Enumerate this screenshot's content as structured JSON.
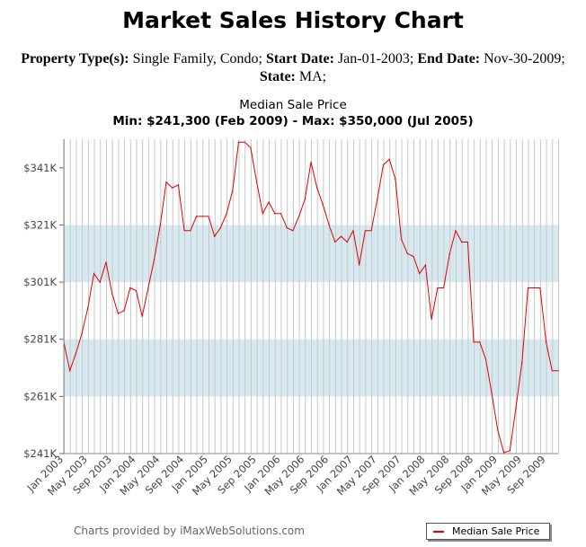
{
  "header": {
    "title": "Market Sales History Chart",
    "property_type_label": "Property Type(s):",
    "property_type": "Single Family, Condo;",
    "start_date_label": "Start Date:",
    "start_date": "Jan-01-2003;",
    "end_date_label": "End Date:",
    "end_date": "Nov-30-2009;",
    "state_label": "State:",
    "state": "MA;"
  },
  "footer": {
    "credit": "Charts provided by iMaxWebSolutions.com"
  },
  "colors": {
    "line": "#e00000",
    "band": "#d7e9f0",
    "grid": "#c8c8c8"
  },
  "chart_data": {
    "type": "line",
    "title": "Median Sale Price",
    "subtitle": "Min: $241,300 (Feb 2009) - Max: $350,000 (Jul 2005)",
    "xlabel": "",
    "ylabel": "",
    "ylim": [
      241000,
      351000
    ],
    "yticks": [
      241000,
      261000,
      281000,
      301000,
      321000,
      341000
    ],
    "ytick_labels": [
      "$241K",
      "$261K",
      "$281K",
      "$301K",
      "$321K",
      "$341K"
    ],
    "xtick_labels": [
      "Jan 2003",
      "May 2003",
      "Sep 2003",
      "Jan 2004",
      "May 2004",
      "Sep 2004",
      "Jan 2005",
      "May 2005",
      "Sep 2005",
      "Jan 2006",
      "May 2006",
      "Sep 2006",
      "Jan 2007",
      "May 2007",
      "Sep 2007",
      "Jan 2008",
      "May 2008",
      "Sep 2008",
      "Jan 2009",
      "May 2009",
      "Sep 2009"
    ],
    "grid": true,
    "shaded_bands": [
      [
        261000,
        281000
      ],
      [
        301000,
        321000
      ]
    ],
    "legend": "bottom-right",
    "series": [
      {
        "name": "Median Sale Price",
        "x": [
          "Jan 2003",
          "Feb 2003",
          "Mar 2003",
          "Apr 2003",
          "May 2003",
          "Jun 2003",
          "Jul 2003",
          "Aug 2003",
          "Sep 2003",
          "Oct 2003",
          "Nov 2003",
          "Dec 2003",
          "Jan 2004",
          "Feb 2004",
          "Mar 2004",
          "Apr 2004",
          "May 2004",
          "Jun 2004",
          "Jul 2004",
          "Aug 2004",
          "Sep 2004",
          "Oct 2004",
          "Nov 2004",
          "Dec 2004",
          "Jan 2005",
          "Feb 2005",
          "Mar 2005",
          "Apr 2005",
          "May 2005",
          "Jun 2005",
          "Jul 2005",
          "Aug 2005",
          "Sep 2005",
          "Oct 2005",
          "Nov 2005",
          "Dec 2005",
          "Jan 2006",
          "Feb 2006",
          "Mar 2006",
          "Apr 2006",
          "May 2006",
          "Jun 2006",
          "Jul 2006",
          "Aug 2006",
          "Sep 2006",
          "Oct 2006",
          "Nov 2006",
          "Dec 2006",
          "Jan 2007",
          "Feb 2007",
          "Mar 2007",
          "Apr 2007",
          "May 2007",
          "Jun 2007",
          "Jul 2007",
          "Aug 2007",
          "Sep 2007",
          "Oct 2007",
          "Nov 2007",
          "Dec 2007",
          "Jan 2008",
          "Feb 2008",
          "Mar 2008",
          "Apr 2008",
          "May 2008",
          "Jun 2008",
          "Jul 2008",
          "Aug 2008",
          "Sep 2008",
          "Oct 2008",
          "Nov 2008",
          "Dec 2008",
          "Jan 2009",
          "Feb 2009",
          "Mar 2009",
          "Apr 2009",
          "May 2009",
          "Jun 2009",
          "Jul 2009",
          "Aug 2009",
          "Sep 2009",
          "Oct 2009",
          "Nov 2009"
        ],
        "values": [
          280000,
          270000,
          276000,
          283000,
          292000,
          304000,
          301000,
          308000,
          297000,
          290000,
          291000,
          299000,
          298000,
          289000,
          299000,
          309000,
          321000,
          336000,
          334000,
          335000,
          319000,
          319000,
          324000,
          324000,
          324000,
          317000,
          320000,
          325000,
          333000,
          350000,
          350000,
          348000,
          336000,
          325000,
          329000,
          325000,
          325000,
          320000,
          319000,
          324000,
          330000,
          343000,
          334000,
          328000,
          321000,
          315000,
          317000,
          315000,
          319000,
          307000,
          319000,
          319000,
          330000,
          342000,
          344000,
          337000,
          316000,
          311000,
          310000,
          304000,
          307000,
          288000,
          299000,
          299000,
          311000,
          319000,
          315000,
          315000,
          280000,
          280000,
          274000,
          262000,
          249000,
          241300,
          242000,
          257000,
          273000,
          299000,
          299000,
          299000,
          280000,
          270000,
          270000
        ]
      }
    ]
  }
}
